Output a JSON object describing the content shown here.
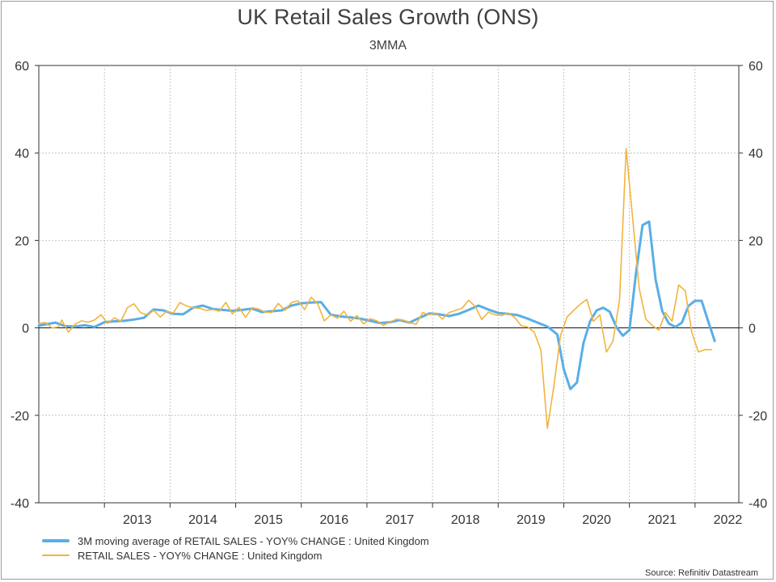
{
  "chart_data": {
    "type": "line",
    "title": "UK Retail Sales Growth (ONS)",
    "subtitle": "3MMA",
    "ylim": [
      -40,
      60
    ],
    "yticks": [
      -40,
      -20,
      0,
      20,
      40,
      60
    ],
    "y_tick_labels": [
      "-40",
      "-20",
      "0",
      "20",
      "40",
      "60"
    ],
    "xlim": [
      2012.0,
      2022.667
    ],
    "x_tick_labels": [
      "2013",
      "2014",
      "2015",
      "2016",
      "2017",
      "2018",
      "2019",
      "2020",
      "2021",
      "2022"
    ],
    "x_tick_values": [
      2013.5,
      2014.5,
      2015.5,
      2016.5,
      2017.5,
      2018.5,
      2019.5,
      2020.5,
      2021.5,
      2022.5
    ],
    "grid": true,
    "dual_y_axis": true,
    "legend_position": "bottom-left",
    "series": [
      {
        "name": "3M moving average of RETAIL SALES - YOY% CHANGE : United Kingdom",
        "color": "#5aaee6",
        "x": [
          2012.0,
          2012.25,
          2012.4,
          2012.55,
          2012.7,
          2012.85,
          2013.0,
          2013.15,
          2013.3,
          2013.45,
          2013.6,
          2013.75,
          2013.9,
          2014.05,
          2014.2,
          2014.35,
          2014.5,
          2014.65,
          2014.8,
          2014.95,
          2015.1,
          2015.25,
          2015.4,
          2015.55,
          2015.7,
          2015.85,
          2016.0,
          2016.15,
          2016.3,
          2016.45,
          2016.6,
          2016.75,
          2016.9,
          2017.05,
          2017.2,
          2017.35,
          2017.5,
          2017.65,
          2017.8,
          2017.95,
          2018.1,
          2018.25,
          2018.4,
          2018.55,
          2018.7,
          2018.85,
          2019.0,
          2019.15,
          2019.3,
          2019.45,
          2019.6,
          2019.75,
          2019.9,
          2020.0,
          2020.1,
          2020.2,
          2020.3,
          2020.4,
          2020.5,
          2020.6,
          2020.7,
          2020.8,
          2020.9,
          2021.0,
          2021.1,
          2021.2,
          2021.3,
          2021.4,
          2021.5,
          2021.6,
          2021.7,
          2021.8,
          2021.9,
          2022.0,
          2022.1,
          2022.2,
          2022.3
        ],
        "values": [
          0.5,
          1.2,
          0.4,
          0.3,
          0.6,
          0.2,
          1.3,
          1.5,
          1.6,
          1.9,
          2.3,
          4.2,
          4.0,
          3.2,
          3.1,
          4.6,
          5.1,
          4.3,
          4.1,
          3.9,
          4.1,
          4.4,
          3.6,
          3.8,
          4.0,
          5.1,
          5.6,
          5.8,
          5.9,
          3.0,
          2.6,
          2.4,
          2.1,
          1.6,
          1.1,
          1.3,
          1.8,
          1.2,
          2.3,
          3.3,
          3.1,
          2.7,
          3.2,
          4.1,
          5.1,
          4.2,
          3.4,
          3.2,
          2.9,
          2.1,
          1.2,
          0.3,
          -1.5,
          -9.5,
          -14.0,
          -12.5,
          -3.5,
          1.5,
          4.0,
          4.6,
          3.7,
          0.2,
          -1.8,
          -0.5,
          12.5,
          23.5,
          24.3,
          11.0,
          3.8,
          1.0,
          0.2,
          1.2,
          5.0,
          6.2,
          6.2,
          1.5,
          -3.0
        ]
      },
      {
        "name": "RETAIL SALES - YOY% CHANGE : United Kingdom",
        "color": "#f2b43d",
        "x": [
          2012.0,
          2012.1,
          2012.2,
          2012.3,
          2012.35,
          2012.45,
          2012.55,
          2012.65,
          2012.75,
          2012.85,
          2012.95,
          2013.05,
          2013.15,
          2013.25,
          2013.35,
          2013.45,
          2013.55,
          2013.65,
          2013.75,
          2013.85,
          2013.95,
          2014.05,
          2014.15,
          2014.25,
          2014.35,
          2014.45,
          2014.55,
          2014.65,
          2014.75,
          2014.85,
          2014.95,
          2015.05,
          2015.15,
          2015.25,
          2015.35,
          2015.45,
          2015.55,
          2015.65,
          2015.75,
          2015.85,
          2015.95,
          2016.05,
          2016.15,
          2016.25,
          2016.35,
          2016.45,
          2016.55,
          2016.65,
          2016.75,
          2016.85,
          2016.95,
          2017.05,
          2017.15,
          2017.25,
          2017.35,
          2017.45,
          2017.55,
          2017.65,
          2017.75,
          2017.85,
          2017.95,
          2018.05,
          2018.15,
          2018.25,
          2018.35,
          2018.45,
          2018.55,
          2018.65,
          2018.75,
          2018.85,
          2018.95,
          2019.05,
          2019.15,
          2019.25,
          2019.35,
          2019.45,
          2019.55,
          2019.65,
          2019.75,
          2019.85,
          2019.95,
          2020.05,
          2020.15,
          2020.25,
          2020.35,
          2020.45,
          2020.55,
          2020.65,
          2020.75,
          2020.85,
          2020.95,
          2021.05,
          2021.15,
          2021.25,
          2021.35,
          2021.45,
          2021.55,
          2021.65,
          2021.75,
          2021.85,
          2021.95,
          2022.05,
          2022.15,
          2022.25
        ],
        "values": [
          1.0,
          1.2,
          0.0,
          0.2,
          1.8,
          -1.0,
          0.8,
          1.6,
          1.3,
          1.8,
          3.0,
          1.0,
          2.3,
          1.5,
          4.6,
          5.5,
          3.5,
          3.0,
          4.0,
          2.5,
          3.8,
          3.4,
          5.8,
          5.0,
          4.6,
          4.5,
          4.0,
          4.2,
          3.8,
          5.8,
          3.2,
          4.7,
          2.4,
          4.6,
          4.3,
          3.6,
          3.5,
          5.6,
          4.0,
          5.8,
          6.2,
          4.2,
          7.0,
          5.5,
          1.6,
          3.0,
          2.2,
          3.8,
          1.5,
          2.8,
          0.9,
          2.1,
          1.6,
          0.6,
          1.3,
          2.0,
          1.8,
          1.2,
          0.8,
          3.5,
          3.0,
          3.4,
          2.0,
          3.5,
          4.0,
          4.5,
          6.3,
          4.9,
          1.9,
          3.6,
          3.0,
          2.8,
          3.4,
          2.4,
          0.5,
          0.2,
          -1.0,
          -5.0,
          -23.0,
          -13.2,
          -1.8,
          2.5,
          4.0,
          5.4,
          6.5,
          1.5,
          3.0,
          -5.5,
          -3.0,
          6.5,
          41.0,
          25.0,
          9.0,
          2.0,
          0.5,
          -0.5,
          3.5,
          1.5,
          9.8,
          8.5,
          -1.0,
          -5.5,
          -5.0,
          -5.0
        ]
      }
    ]
  },
  "legend": {
    "items": [
      {
        "label": "3M moving average of RETAIL SALES - YOY% CHANGE : United Kingdom",
        "color": "#5aaee6"
      },
      {
        "label": "RETAIL SALES - YOY% CHANGE : United Kingdom",
        "color": "#f2b43d"
      }
    ]
  },
  "source": "Source: Refinitiv Datastream"
}
